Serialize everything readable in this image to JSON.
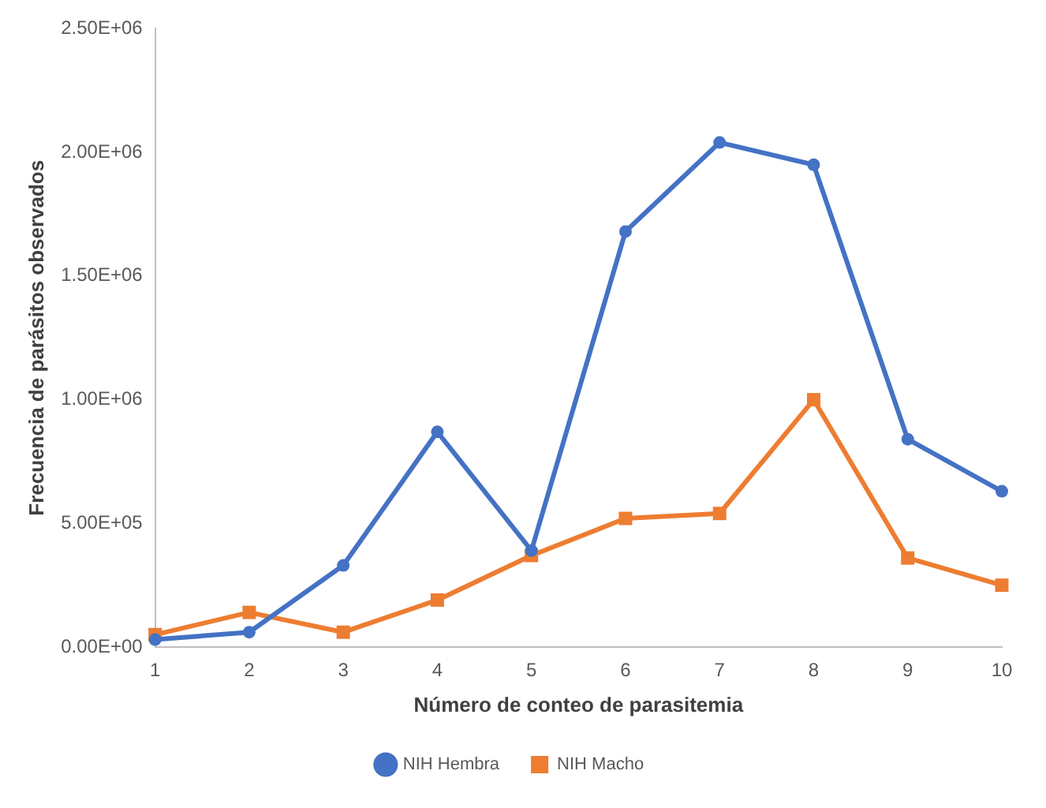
{
  "chart_data": {
    "type": "line",
    "xlabel": "Número de conteo de parasitemia",
    "ylabel": "Frecuencia de parásitos observados",
    "categories": [
      "1",
      "2",
      "3",
      "4",
      "5",
      "6",
      "7",
      "8",
      "9",
      "10"
    ],
    "series": [
      {
        "name": "NIH Hembra",
        "color": "#4472c4",
        "marker": "circle",
        "values": [
          30000,
          60000,
          330000,
          870000,
          390000,
          1680000,
          2040000,
          1950000,
          840000,
          630000
        ]
      },
      {
        "name": "NIH Macho",
        "color": "#ed7d31",
        "marker": "square",
        "values": [
          50000,
          140000,
          60000,
          190000,
          370000,
          520000,
          540000,
          1000000,
          360000,
          250000
        ]
      }
    ],
    "ylim": [
      0,
      2500000
    ],
    "yticks": [
      {
        "value": 0,
        "label": "0.00E+00"
      },
      {
        "value": 500000,
        "label": "5.00E+05"
      },
      {
        "value": 1000000,
        "label": "1.00E+06"
      },
      {
        "value": 1500000,
        "label": "1.50E+06"
      },
      {
        "value": 2000000,
        "label": "2.00E+06"
      },
      {
        "value": 2500000,
        "label": "2.50E+06"
      }
    ],
    "grid": false,
    "legend": "bottom",
    "line_style": "solid"
  }
}
